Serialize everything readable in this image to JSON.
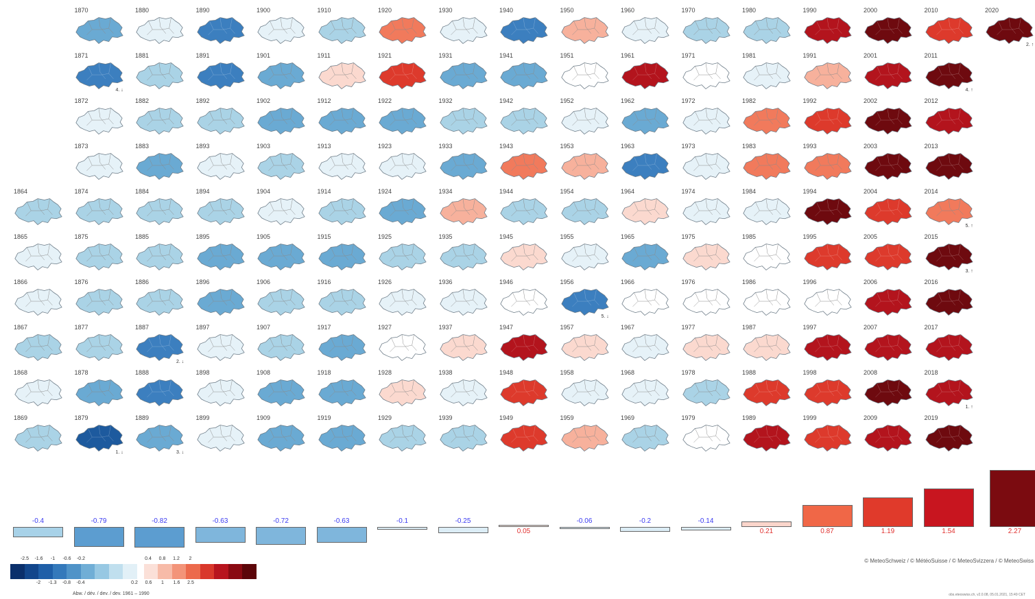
{
  "chart_data": {
    "type": "heatmap",
    "title": "",
    "description_units": "temperature deviation",
    "colorbar": {
      "negative_ticks_top": [
        "-2.5",
        "-1.6",
        "-1",
        "-0.6",
        "-0.2"
      ],
      "negative_ticks_bottom": [
        "-2",
        "-1.3",
        "-0.8",
        "-0.4"
      ],
      "positive_ticks_top": [
        "0.4",
        "0.8",
        "1.2",
        "2"
      ],
      "positive_ticks_bottom": [
        "0.2",
        "0.6",
        "1",
        "1.6",
        "2.5"
      ],
      "colors": [
        "#0a2f6b",
        "#12468c",
        "#1f5fa8",
        "#3479bb",
        "#4f93c8",
        "#70aed6",
        "#97c8e3",
        "#c0dfee",
        "#e2f0f7",
        "#fbe0d8",
        "#f7bba8",
        "#f39479",
        "#ec6a4c",
        "#d9382b",
        "#b8141e",
        "#8a0a12",
        "#5c0509"
      ],
      "caption": "Abw. / dév. / dev. / dev. 1961 – 1990"
    },
    "years": [
      1864,
      1865,
      1866,
      1867,
      1868,
      1869,
      1870,
      1871,
      1872,
      1873,
      1874,
      1875,
      1876,
      1877,
      1878,
      1879,
      1880,
      1881,
      1882,
      1883,
      1884,
      1885,
      1886,
      1887,
      1888,
      1889,
      1890,
      1891,
      1892,
      1893,
      1894,
      1895,
      1896,
      1897,
      1898,
      1899,
      1900,
      1901,
      1902,
      1903,
      1904,
      1905,
      1906,
      1907,
      1908,
      1909,
      1910,
      1911,
      1912,
      1913,
      1914,
      1915,
      1916,
      1917,
      1918,
      1919,
      1920,
      1921,
      1922,
      1923,
      1924,
      1925,
      1926,
      1927,
      1928,
      1929,
      1930,
      1931,
      1932,
      1933,
      1934,
      1935,
      1936,
      1937,
      1938,
      1939,
      1940,
      1941,
      1942,
      1943,
      1944,
      1945,
      1946,
      1947,
      1948,
      1949,
      1950,
      1951,
      1952,
      1953,
      1954,
      1955,
      1956,
      1957,
      1958,
      1959,
      1960,
      1961,
      1962,
      1963,
      1964,
      1965,
      1966,
      1967,
      1968,
      1969,
      1970,
      1971,
      1972,
      1973,
      1974,
      1975,
      1976,
      1977,
      1978,
      1979,
      1980,
      1981,
      1982,
      1983,
      1984,
      1985,
      1986,
      1987,
      1988,
      1989,
      1990,
      1991,
      1992,
      1993,
      1994,
      1995,
      1996,
      1997,
      1998,
      1999,
      2000,
      2001,
      2002,
      2003,
      2004,
      2005,
      2006,
      2007,
      2008,
      2009,
      2010,
      2011,
      2012,
      2013,
      2014,
      2015,
      2016,
      2017,
      2018,
      2019,
      2020
    ],
    "anomaly_class": [
      2,
      1,
      1,
      2,
      1,
      2,
      3,
      4,
      1,
      1,
      2,
      2,
      2,
      2,
      3,
      5,
      1,
      2,
      2,
      3,
      2,
      2,
      2,
      4,
      4,
      3,
      4,
      4,
      2,
      1,
      2,
      3,
      3,
      1,
      1,
      1,
      1,
      3,
      3,
      2,
      1,
      3,
      2,
      2,
      3,
      3,
      2,
      -1,
      3,
      1,
      2,
      3,
      2,
      3,
      3,
      3,
      -3,
      -4,
      3,
      1,
      3,
      2,
      1,
      0,
      -1,
      2,
      1,
      3,
      2,
      3,
      -2,
      2,
      1,
      -1,
      1,
      2,
      4,
      3,
      2,
      -3,
      2,
      -1,
      0,
      -5,
      -4,
      -4,
      -2,
      0,
      1,
      -2,
      2,
      1,
      4,
      -1,
      1,
      -2,
      1,
      -5,
      3,
      4,
      -1,
      3,
      0,
      1,
      1,
      2,
      2,
      0,
      1,
      1,
      1,
      -1,
      0,
      -1,
      2,
      0,
      2,
      1,
      -3,
      -3,
      1,
      0,
      0,
      -1,
      -4,
      -5,
      -5,
      -2,
      -4,
      -3,
      -6,
      -4,
      0,
      -5,
      -4,
      -4,
      -6,
      -5,
      -6,
      -6,
      -4,
      -4,
      -5,
      -5,
      -6,
      -5,
      -4,
      -6,
      -5,
      -6,
      -3,
      -6,
      -6,
      -5,
      -5,
      -6,
      -6,
      -6
    ],
    "annotations": {
      "1871": "4. ↓",
      "1887": "2. ↓",
      "1879": "1. ↓",
      "1889": "3. ↓",
      "1956": "5. ↓",
      "2011": "4. ↑",
      "2014": "5. ↑",
      "2015": "3. ↑",
      "2018": "1. ↑",
      "2020": "2. ↑"
    },
    "decade_bars": [
      {
        "label": "-0.4",
        "value": -0.4
      },
      {
        "label": "-0.79",
        "value": -0.79
      },
      {
        "label": "-0.82",
        "value": -0.82
      },
      {
        "label": "-0.63",
        "value": -0.63
      },
      {
        "label": "-0.72",
        "value": -0.72
      },
      {
        "label": "-0.63",
        "value": -0.63
      },
      {
        "label": "-0.1",
        "value": -0.1
      },
      {
        "label": "-0.25",
        "value": -0.25
      },
      {
        "label": "0.05",
        "value": 0.05
      },
      {
        "label": "-0.06",
        "value": -0.06
      },
      {
        "label": "-0.2",
        "value": -0.2
      },
      {
        "label": "-0.14",
        "value": -0.14
      },
      {
        "label": "0.21",
        "value": 0.21
      },
      {
        "label": "0.87",
        "value": 0.87
      },
      {
        "label": "1.19",
        "value": 1.19
      },
      {
        "label": "1.54",
        "value": 1.54
      },
      {
        "label": "2.27",
        "value": 2.27
      }
    ]
  },
  "credit": "© MeteoSchweiz / © MétéoSuisse / © MeteoSvizzera / © MeteoSwiss",
  "footer": "obs.eteoswiss.ch, v2.0.08, 05.01.2021, 15:49 CET"
}
